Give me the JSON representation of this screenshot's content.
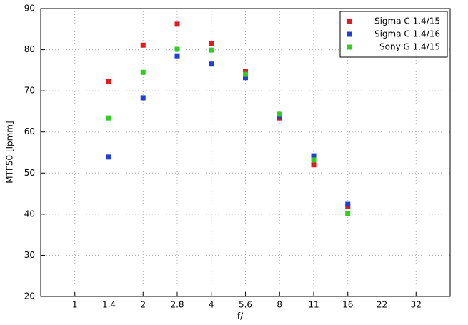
{
  "chart_data": {
    "type": "scatter",
    "x_label": "f/",
    "y_label": "MTF50 [lpmm]",
    "categories": [
      "1",
      "1.4",
      "2",
      "2.8",
      "4",
      "5.6",
      "8",
      "11",
      "16",
      "22",
      "32"
    ],
    "series": [
      {
        "name": "Sigma C 1.4/15",
        "color": "#e31a1c",
        "values": [
          null,
          72.3,
          81.1,
          86.2,
          81.5,
          74.7,
          63.4,
          52.0,
          41.9,
          null,
          null
        ]
      },
      {
        "name": "Sigma C 1.4/16",
        "color": "#1f3fd6",
        "values": [
          null,
          53.9,
          68.3,
          78.5,
          76.5,
          73.2,
          63.9,
          54.2,
          42.4,
          null,
          null
        ]
      },
      {
        "name": "Sony G 1.4/15",
        "color": "#33cc22",
        "values": [
          null,
          63.4,
          74.5,
          80.1,
          79.9,
          74.0,
          64.3,
          53.2,
          40.1,
          null,
          null
        ]
      }
    ],
    "ylim": [
      20,
      90
    ],
    "yticks": [
      20,
      30,
      40,
      50,
      60,
      70,
      80,
      90
    ],
    "grid": true,
    "legend": "top-right"
  }
}
